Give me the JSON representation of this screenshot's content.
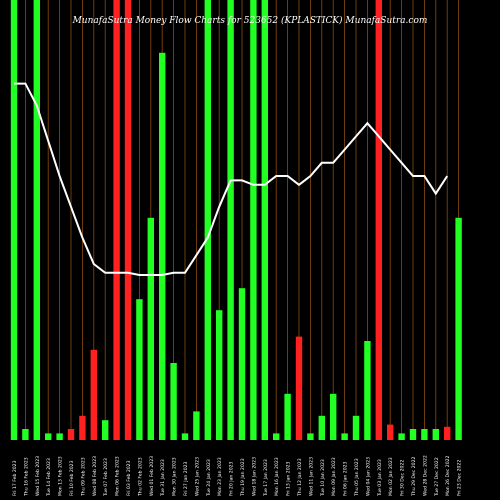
{
  "chart_data": {
    "type": "bar",
    "title": "MunafaSutra  Money Flow  Charts for 523652                    (KPLASTICK) MunafaSutra.com",
    "colors": {
      "background": "#000000",
      "grid": "#8a4a10",
      "up": "#22ff22",
      "down": "#ff2020",
      "line": "#ffffff"
    },
    "ylim": [
      0,
      100
    ],
    "bar_scale_note": "",
    "categories": [
      "Fri 17 Feb 2023",
      "Thu 16 Feb 2023",
      "Wed 15 Feb 2023",
      "Tue 14 Feb 2023",
      "Mon 13 Feb 2023",
      "Fri 10 Feb 2023",
      "Thu 09 Feb 2023",
      "Wed 08 Feb 2023",
      "Tue 07 Feb 2023",
      "Mon 06 Feb 2023",
      "Fri 03 Feb 2023",
      "Thu 02 Feb 2023",
      "Wed 01 Feb 2023",
      "Tue 31 Jan 2023",
      "Mon 30 Jan 2023",
      "Fri 27 Jan 2023",
      "Wed 25 Jan 2023",
      "Tue 24 Jan 2023",
      "Mon 23 Jan 2023",
      "Fri 20 Jan 2023",
      "Thu 19 Jan 2023",
      "Wed 18 Jan 2023",
      "Tue 17 Jan 2023",
      "Mon 16 Jan 2023",
      "Fri 13 Jan 2023",
      "Thu 12 Jan 2023",
      "Wed 11 Jan 2023",
      "Tue 10 Jan 2023",
      "Mon 09 Jan 2023",
      "Fri 06 Jan 2023",
      "Thu 05 Jan 2023",
      "Wed 04 Jan 2023",
      "Tue 03 Jan 2023",
      "Mon 02 Jan 2023",
      "Fri 30 Dec 2022",
      "Thu 29 Dec 2022",
      "Wed 28 Dec 2022",
      "Tue 27 Dec 2022",
      "Mon 26 Dec 2022",
      "Fri 23 Dec 2022"
    ],
    "bars": [
      {
        "value": 100,
        "color": "up"
      },
      {
        "value": 2.5,
        "color": "up"
      },
      {
        "value": 100,
        "color": "up"
      },
      {
        "value": 1.5,
        "color": "up"
      },
      {
        "value": 1.5,
        "color": "up"
      },
      {
        "value": 2.5,
        "color": "down"
      },
      {
        "value": 5.5,
        "color": "down"
      },
      {
        "value": 20.5,
        "color": "down"
      },
      {
        "value": 4.5,
        "color": "up"
      },
      {
        "value": 100,
        "color": "down"
      },
      {
        "value": 100,
        "color": "down"
      },
      {
        "value": 32,
        "color": "up"
      },
      {
        "value": 50.5,
        "color": "up"
      },
      {
        "value": 88,
        "color": "up"
      },
      {
        "value": 17.5,
        "color": "up"
      },
      {
        "value": 1.5,
        "color": "up"
      },
      {
        "value": 6.5,
        "color": "up"
      },
      {
        "value": 100,
        "color": "up"
      },
      {
        "value": 29.5,
        "color": "up"
      },
      {
        "value": 100,
        "color": "up"
      },
      {
        "value": 34.5,
        "color": "up"
      },
      {
        "value": 100,
        "color": "up"
      },
      {
        "value": 100,
        "color": "up"
      },
      {
        "value": 1.5,
        "color": "up"
      },
      {
        "value": 10.5,
        "color": "up"
      },
      {
        "value": 23.5,
        "color": "down"
      },
      {
        "value": 1.5,
        "color": "up"
      },
      {
        "value": 5.5,
        "color": "up"
      },
      {
        "value": 10.5,
        "color": "up"
      },
      {
        "value": 1.5,
        "color": "up"
      },
      {
        "value": 5.5,
        "color": "up"
      },
      {
        "value": 22.5,
        "color": "up"
      },
      {
        "value": 100,
        "color": "down"
      },
      {
        "value": 3.5,
        "color": "down"
      },
      {
        "value": 1.5,
        "color": "up"
      },
      {
        "value": 2.5,
        "color": "up"
      },
      {
        "value": 2.5,
        "color": "up"
      },
      {
        "value": 2.5,
        "color": "up"
      },
      {
        "value": 3.0,
        "color": "down"
      },
      {
        "value": 50.5,
        "color": "up"
      }
    ],
    "line": {
      "values": [
        81,
        81,
        76,
        68,
        60,
        53,
        46,
        40,
        38,
        38,
        38,
        37.5,
        37.5,
        37.5,
        38,
        38,
        42,
        46,
        53,
        59,
        59,
        58,
        58,
        60,
        60,
        58,
        60,
        63,
        63,
        66,
        69,
        72,
        69,
        66,
        63,
        60,
        60,
        56,
        60
      ],
      "start_index": 0
    }
  }
}
